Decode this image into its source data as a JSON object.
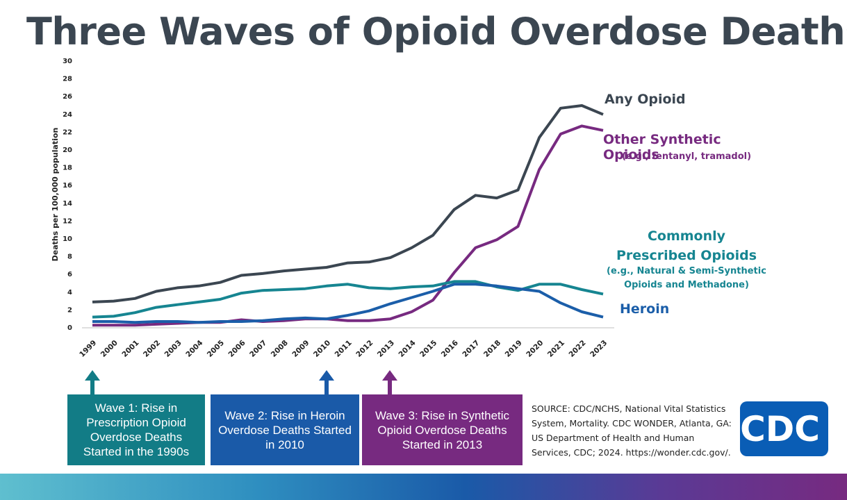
{
  "chart_data": {
    "type": "line",
    "title": "Three Waves of Opioid Overdose Deaths",
    "y_label": "Deaths per 100,000 population",
    "categories": [
      "1999",
      "2000",
      "2001",
      "2002",
      "2003",
      "2004",
      "2005",
      "2006",
      "2007",
      "2008",
      "2009",
      "2010",
      "2011",
      "2012",
      "2013",
      "2014",
      "2015",
      "2016",
      "2017",
      "2018",
      "2019",
      "2020",
      "2021",
      "2022",
      "2023"
    ],
    "ylim": [
      0,
      30
    ],
    "yticks": [
      0,
      2,
      4,
      6,
      8,
      10,
      12,
      14,
      16,
      18,
      20,
      22,
      24,
      26,
      28,
      30
    ],
    "grid": false,
    "series": [
      {
        "name": "Any Opioid",
        "color": "#3b4651",
        "values": [
          2.9,
          3.0,
          3.3,
          4.1,
          4.5,
          4.7,
          5.1,
          5.9,
          6.1,
          6.4,
          6.6,
          6.8,
          7.3,
          7.4,
          7.9,
          9.0,
          10.4,
          13.3,
          14.9,
          14.6,
          15.5,
          21.4,
          24.7,
          25.0,
          24.0
        ]
      },
      {
        "name": "Other Synthetic Opioids",
        "note": "(e.g., fentanyl, tramadol)",
        "color": "#772a80",
        "values": [
          0.3,
          0.3,
          0.3,
          0.4,
          0.5,
          0.6,
          0.6,
          0.9,
          0.7,
          0.8,
          1.0,
          1.0,
          0.8,
          0.8,
          1.0,
          1.8,
          3.1,
          6.2,
          9.0,
          9.9,
          11.4,
          17.8,
          21.8,
          22.7,
          22.2
        ]
      },
      {
        "name": "Commonly Prescribed Opioids",
        "note": "(e.g., Natural & Semi-Synthetic Opioids and Methadone)",
        "color": "#168591",
        "values": [
          1.2,
          1.3,
          1.7,
          2.3,
          2.6,
          2.9,
          3.2,
          3.9,
          4.2,
          4.3,
          4.4,
          4.7,
          4.9,
          4.5,
          4.4,
          4.6,
          4.7,
          5.2,
          5.2,
          4.6,
          4.2,
          4.9,
          4.9,
          4.3,
          3.8
        ]
      },
      {
        "name": "Heroin",
        "color": "#1b5ea9",
        "values": [
          0.7,
          0.7,
          0.6,
          0.7,
          0.7,
          0.6,
          0.7,
          0.7,
          0.8,
          1.0,
          1.1,
          1.0,
          1.4,
          1.9,
          2.7,
          3.4,
          4.1,
          4.9,
          4.9,
          4.7,
          4.4,
          4.1,
          2.8,
          1.8,
          1.2
        ]
      }
    ]
  },
  "waves": [
    {
      "text": "Wave 1: Rise in Prescription Opioid Overdose Deaths Started in the 1990s",
      "color": "#127c86"
    },
    {
      "text": "Wave 2: Rise in Heroin Overdose Deaths Started in 2010",
      "color": "#1a5aa8"
    },
    {
      "text": "Wave 3: Rise in Synthetic Opioid Overdose Deaths Started in 2013",
      "color": "#772a80"
    }
  ],
  "source": "SOURCE: CDC/NCHS, National Vital Statistics System, Mortality. CDC WONDER, Atlanta, GA: US Department of Health and Human Services, CDC; 2024. https://wonder.cdc.gov/.",
  "logo": "CDC"
}
